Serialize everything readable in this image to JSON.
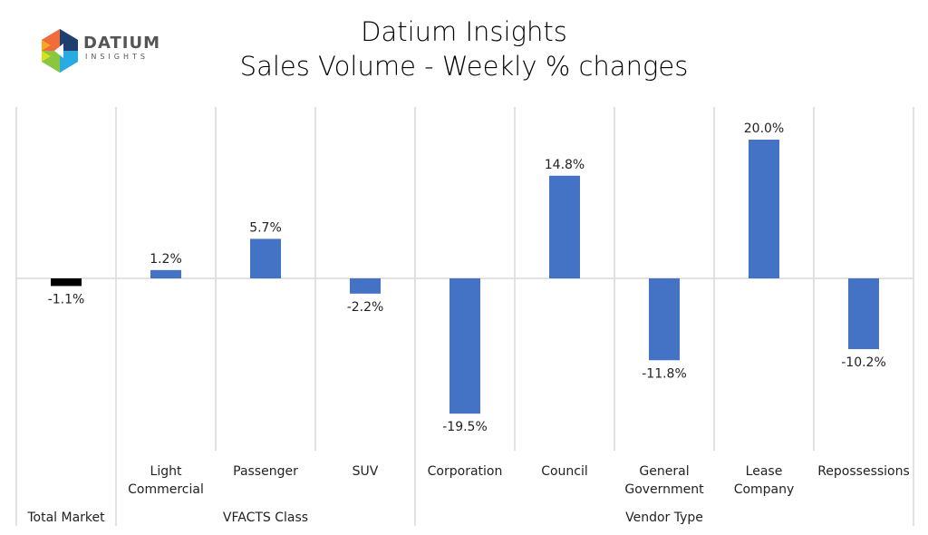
{
  "logo": {
    "name": "DATIUM",
    "sub": "INSIGHTS"
  },
  "chart_data": {
    "type": "bar",
    "title": "Datium Insights",
    "subtitle": "Sales Volume - Weekly % changes",
    "categories": [
      "Total Market",
      "Light Commercial",
      "Passenger",
      "SUV",
      "Corporation",
      "Council",
      "General Government",
      "Lease Company",
      "Repossessions"
    ],
    "category_lines": [
      [
        "Total Market"
      ],
      [
        "Light",
        "Commercial"
      ],
      [
        "Passenger"
      ],
      [
        "SUV"
      ],
      [
        "Corporation"
      ],
      [
        "Council"
      ],
      [
        "General",
        "Government"
      ],
      [
        "Lease",
        "Company"
      ],
      [
        "Repossessions"
      ]
    ],
    "show_inner_label": [
      false,
      true,
      true,
      true,
      true,
      true,
      true,
      true,
      true
    ],
    "groups": [
      {
        "label": "Total Market",
        "span": 1
      },
      {
        "label": "VFACTS Class",
        "span": 3
      },
      {
        "label": "Vendor Type",
        "span": 5
      }
    ],
    "values": [
      -1.1,
      1.2,
      5.7,
      -2.2,
      -19.5,
      14.8,
      -11.8,
      20.0,
      -10.2
    ],
    "data_labels": [
      "-1.1%",
      "1.2%",
      "5.7%",
      "-2.2%",
      "-19.5%",
      "14.8%",
      "-11.8%",
      "20.0%",
      "-10.2%"
    ],
    "colors": [
      "#000000",
      "#4472c4",
      "#4472c4",
      "#4472c4",
      "#4472c4",
      "#4472c4",
      "#4472c4",
      "#4472c4",
      "#4472c4"
    ],
    "ylim": [
      -25,
      25
    ],
    "grid": false,
    "legend": "none"
  }
}
